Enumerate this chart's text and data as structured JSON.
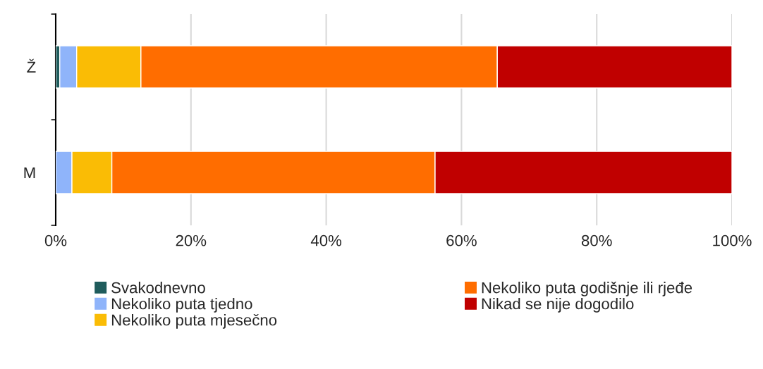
{
  "chart_data": {
    "type": "bar",
    "orientation": "horizontal",
    "stacked": true,
    "categories": [
      "Ž",
      "M"
    ],
    "series": [
      {
        "name": "Svakodnevno",
        "color": "#1f5c5c",
        "values": [
          0.6,
          0
        ]
      },
      {
        "name": "Nekoliko puta tjedno",
        "color": "#8fb4fa",
        "values": [
          2.5,
          2.4
        ]
      },
      {
        "name": "Nekoliko puta mjesečno",
        "color": "#fabc05",
        "values": [
          9.5,
          5.9
        ]
      },
      {
        "name": "Nekoliko puta godišnje ili rjeđe",
        "color": "#ff6d00",
        "values": [
          52.7,
          47.8
        ]
      },
      {
        "name": "Nikad se nije dogodilo",
        "color": "#c00000",
        "values": [
          34.7,
          43.9
        ]
      }
    ],
    "xlim": [
      0,
      100
    ],
    "xticks": [
      {
        "value": 0,
        "label": "0%"
      },
      {
        "value": 20,
        "label": "20%"
      },
      {
        "value": 40,
        "label": "40%"
      },
      {
        "value": 60,
        "label": "60%"
      },
      {
        "value": 80,
        "label": "80%"
      },
      {
        "value": 100,
        "label": "100%"
      }
    ],
    "grid": "x",
    "legend": "bottom"
  }
}
